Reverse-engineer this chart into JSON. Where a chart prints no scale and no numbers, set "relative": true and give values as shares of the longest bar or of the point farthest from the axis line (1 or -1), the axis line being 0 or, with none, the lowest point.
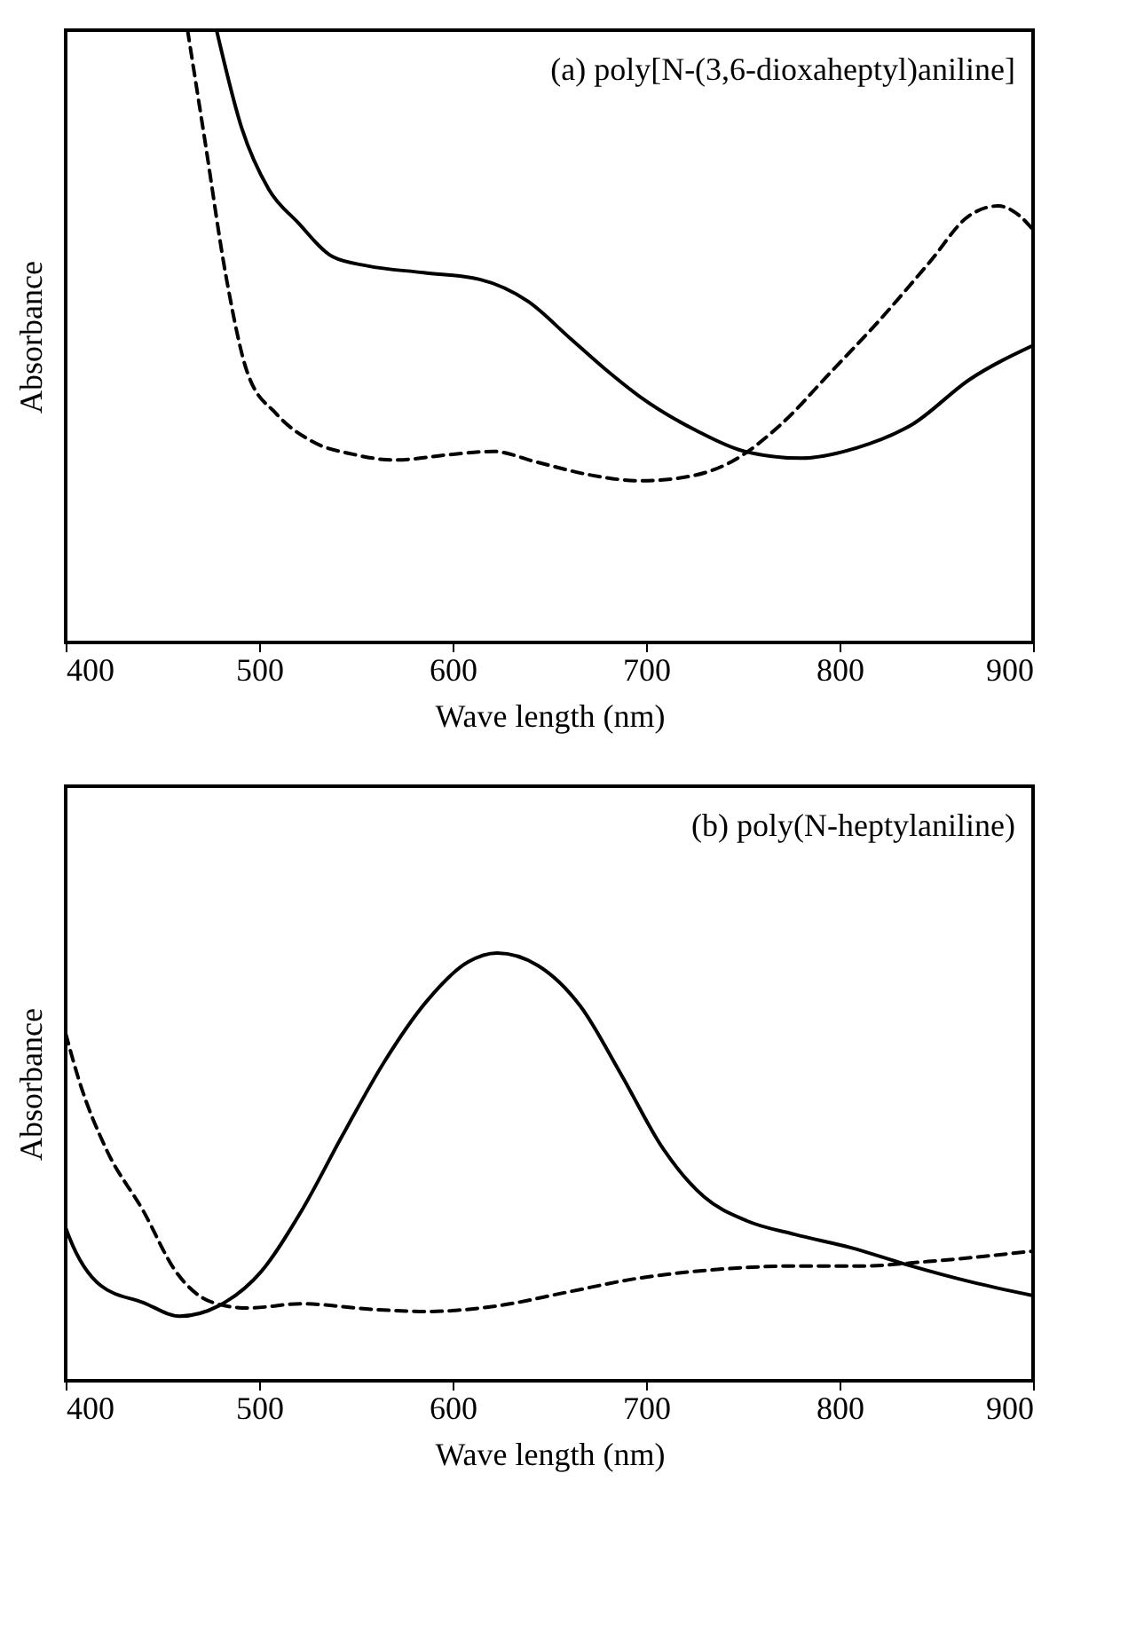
{
  "chart_data": [
    {
      "type": "line",
      "xlabel": "Wave length (nm)",
      "ylabel": "Absorbance",
      "annotations": [
        "(a) poly[N-(3,6-dioxaheptyl)aniline]"
      ],
      "relative": true,
      "xlim": [
        400,
        900
      ],
      "xticks": [
        400,
        500,
        600,
        700,
        800,
        900
      ],
      "tick_labels": "x",
      "grid": false,
      "series": [
        {
          "color": "#000000",
          "line_style": "solid",
          "x": [
            478,
            491,
            505,
            520,
            538,
            556,
            585,
            614,
            639,
            661,
            679,
            697,
            726,
            751,
            780,
            809,
            838,
            867,
            900
          ],
          "values": [
            1,
            0.84,
            0.74,
            0.686,
            0.63,
            0.615,
            0.604,
            0.593,
            0.557,
            0.496,
            0.446,
            0.401,
            0.346,
            0.312,
            0.301,
            0.318,
            0.357,
            0.429,
            0.485
          ]
        },
        {
          "color": "#000000",
          "line_style": "dashed",
          "x": [
            463,
            472,
            483,
            494,
            509,
            527,
            549,
            570,
            599,
            621,
            643,
            672,
            697,
            722,
            744,
            770,
            795,
            820,
            846,
            867,
            882,
            893,
            900
          ],
          "values": [
            1,
            0.819,
            0.596,
            0.44,
            0.373,
            0.329,
            0.307,
            0.298,
            0.307,
            0.312,
            0.295,
            0.273,
            0.264,
            0.271,
            0.295,
            0.357,
            0.44,
            0.524,
            0.619,
            0.697,
            0.713,
            0.697,
            0.674
          ]
        }
      ]
    },
    {
      "type": "line",
      "xlabel": "Wave length (nm)",
      "ylabel": "Absorbance",
      "annotations": [
        "(b) poly(N-heptylaniline)"
      ],
      "relative": true,
      "xlim": [
        400,
        900
      ],
      "xticks": [
        400,
        500,
        600,
        700,
        800,
        900
      ],
      "tick_labels": "x",
      "grid": false,
      "series": [
        {
          "color": "#000000",
          "line_style": "solid",
          "x": [
            400,
            402,
            418,
            440,
            459,
            479,
            501,
            522,
            543,
            565,
            586,
            608,
            623,
            644,
            666,
            687,
            709,
            730,
            752,
            777,
            806,
            835,
            868,
            900
          ],
          "values": [
            0.358,
            0.334,
            0.223,
            0.183,
            0.151,
            0.175,
            0.255,
            0.398,
            0.573,
            0.748,
            0.884,
            0.979,
            1,
            0.971,
            0.876,
            0.717,
            0.541,
            0.43,
            0.374,
            0.342,
            0.311,
            0.271,
            0.231,
            0.199
          ]
        },
        {
          "color": "#000000",
          "line_style": "dashed",
          "x": [
            400,
            407,
            421,
            440,
            457,
            476,
            494,
            522,
            558,
            587,
            623,
            659,
            695,
            731,
            774,
            810,
            846,
            900
          ],
          "values": [
            0.812,
            0.701,
            0.541,
            0.398,
            0.255,
            0.183,
            0.17,
            0.18,
            0.167,
            0.162,
            0.175,
            0.207,
            0.239,
            0.258,
            0.268,
            0.268,
            0.279,
            0.303
          ]
        }
      ]
    }
  ]
}
